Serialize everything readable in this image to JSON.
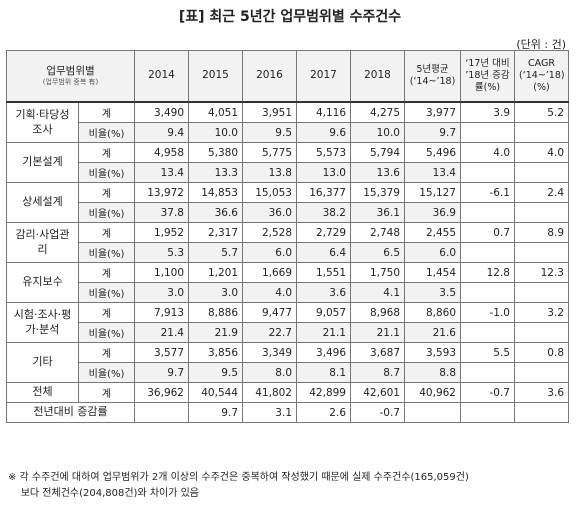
{
  "title": "[표] 최근 5년간 업무범위별 수주건수",
  "unit": "(단위 : 건)",
  "headers": {
    "category": "업무범위별",
    "category_sub": "(업무범위 중복 有)",
    "years": [
      "2014",
      "2015",
      "2016",
      "2017",
      "2018"
    ],
    "avg": "5년평균 (‘14~’18)",
    "growth": "‘17년 대비 ’18년 증감률(%)",
    "cagr": "CAGR (‘14~’18) (%)"
  },
  "labels": {
    "count": "계",
    "ratio": "비율(%)"
  },
  "groups": [
    {
      "name": "기획·타당성조사",
      "count": [
        "3,490",
        "4,051",
        "3,951",
        "4,116",
        "4,275",
        "3,977"
      ],
      "growth": "3.9",
      "cagr": "5.2",
      "ratio": [
        "9.4",
        "10.0",
        "9.5",
        "9.6",
        "10.0",
        "9.7"
      ]
    },
    {
      "name": "기본설계",
      "count": [
        "4,958",
        "5,380",
        "5,775",
        "5,573",
        "5,794",
        "5,496"
      ],
      "growth": "4.0",
      "cagr": "4.0",
      "ratio": [
        "13.4",
        "13.3",
        "13.8",
        "13.0",
        "13.6",
        "13.4"
      ]
    },
    {
      "name": "상세설계",
      "count": [
        "13,972",
        "14,853",
        "15,053",
        "16,377",
        "15,379",
        "15,127"
      ],
      "growth": "-6.1",
      "cagr": "2.4",
      "ratio": [
        "37.8",
        "36.6",
        "36.0",
        "38.2",
        "36.1",
        "36.9"
      ]
    },
    {
      "name": "감리·사업관리",
      "count": [
        "1,952",
        "2,317",
        "2,528",
        "2,729",
        "2,748",
        "2,455"
      ],
      "growth": "0.7",
      "cagr": "8.9",
      "ratio": [
        "5.3",
        "5.7",
        "6.0",
        "6.4",
        "6.5",
        "6.0"
      ]
    },
    {
      "name": "유지보수",
      "count": [
        "1,100",
        "1,201",
        "1,669",
        "1,551",
        "1,750",
        "1,454"
      ],
      "growth": "12.8",
      "cagr": "12.3",
      "ratio": [
        "3.0",
        "3.0",
        "4.0",
        "3.6",
        "4.1",
        "3.5"
      ]
    },
    {
      "name": "시험·조사·평가·분석",
      "count": [
        "7,913",
        "8,886",
        "9,477",
        "9,057",
        "8,968",
        "8,860"
      ],
      "growth": "-1.0",
      "cagr": "3.2",
      "ratio": [
        "21.4",
        "21.9",
        "22.7",
        "21.1",
        "21.1",
        "21.6"
      ]
    },
    {
      "name": "기타",
      "count": [
        "3,577",
        "3,856",
        "3,349",
        "3,496",
        "3,687",
        "3,593"
      ],
      "growth": "5.5",
      "cagr": "0.8",
      "ratio": [
        "9.7",
        "9.5",
        "8.0",
        "8.1",
        "8.7",
        "8.8"
      ]
    }
  ],
  "total": {
    "name": "전체",
    "label": "계",
    "values": [
      "36,962",
      "40,544",
      "41,802",
      "42,899",
      "42,601",
      "40,962"
    ],
    "growth": "-0.7",
    "cagr": "3.6"
  },
  "yoy": {
    "name": "전년대비 증감률",
    "values": [
      "",
      "9.7",
      "3.1",
      "2.6",
      "-0.7",
      ""
    ]
  },
  "note": "※ 각 수주건에 대하여 업무범위가 2개 이상의 수주건은 중복하여 작성했기 때문에 실제 수주건수(165,059건)\n    보다 전체건수(204,808건)와 차이가 있음"
}
